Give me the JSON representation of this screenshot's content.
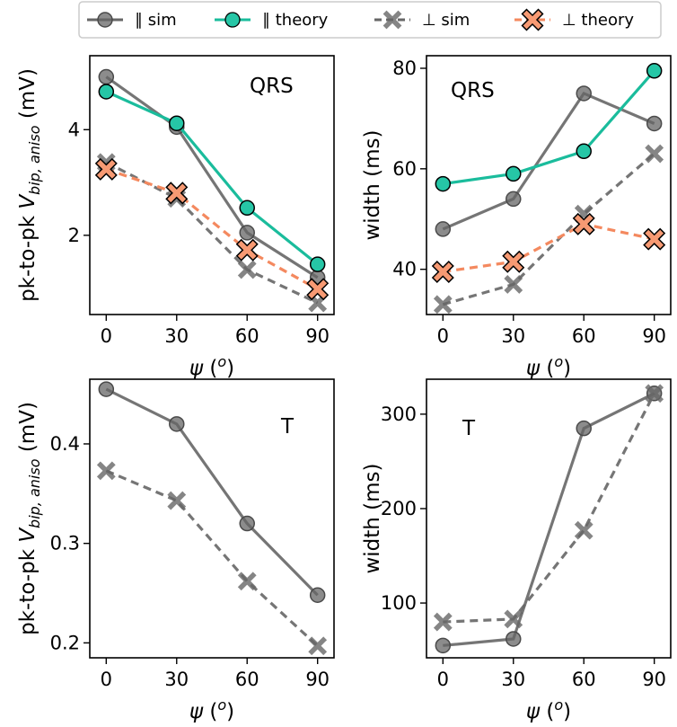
{
  "legend": {
    "entries": [
      {
        "label": "∥ sim",
        "color": "#666666",
        "marker": "circle",
        "dash": false
      },
      {
        "label": "∥ theory",
        "color": "#1abc9c",
        "marker": "circle",
        "dash": false
      },
      {
        "label": "⊥ sim",
        "color": "#666666",
        "marker": "x",
        "dash": true
      },
      {
        "label": "⊥ theory",
        "color": "#f4895f",
        "marker": "x",
        "dash": true
      }
    ]
  },
  "colors": {
    "sim": "#666666",
    "theory_par": "#1abc9c",
    "theory_perp": "#f4895f",
    "theory_par_face": "#26c6a6",
    "theory_perp_face": "#f79a73"
  },
  "chart_data": [
    {
      "type": "line",
      "panel": "top-left",
      "annotation": "QRS",
      "xlabel": "ψ (o)",
      "ylabel": "pk-to-pk V_bip,aniso (mV)",
      "x": [
        0,
        30,
        60,
        90
      ],
      "xlim": [
        -7,
        97
      ],
      "ylim": [
        0.5,
        5.4
      ],
      "xticks": [
        0,
        30,
        60,
        90
      ],
      "yticks": [
        2,
        4
      ],
      "series": [
        {
          "name": "∥ sim",
          "values": [
            5.0,
            4.05,
            2.05,
            1.2
          ]
        },
        {
          "name": "∥ theory",
          "values": [
            4.72,
            4.12,
            2.52,
            1.45
          ]
        },
        {
          "name": "⊥ sim",
          "values": [
            3.38,
            2.7,
            1.35,
            0.72
          ]
        },
        {
          "name": "⊥ theory",
          "values": [
            3.25,
            2.8,
            1.72,
            0.98
          ]
        }
      ]
    },
    {
      "type": "line",
      "panel": "top-right",
      "annotation": "QRS",
      "xlabel": "ψ (o)",
      "ylabel": "width (ms)",
      "x": [
        0,
        30,
        60,
        90
      ],
      "xlim": [
        -7,
        97
      ],
      "ylim": [
        31,
        82.5
      ],
      "xticks": [
        0,
        30,
        60,
        90
      ],
      "yticks": [
        40,
        60,
        80
      ],
      "series": [
        {
          "name": "∥ sim",
          "values": [
            48,
            54,
            75,
            69
          ]
        },
        {
          "name": "∥ theory",
          "values": [
            57,
            59,
            63.5,
            79.5
          ]
        },
        {
          "name": "⊥ sim",
          "values": [
            33,
            37,
            51,
            63
          ]
        },
        {
          "name": "⊥ theory",
          "values": [
            39.5,
            41.5,
            49,
            46
          ]
        }
      ]
    },
    {
      "type": "line",
      "panel": "bottom-left",
      "annotation": "T",
      "xlabel": "ψ (o)",
      "ylabel": "pk-to-pk V_bip,aniso (mV)",
      "x": [
        0,
        30,
        60,
        90
      ],
      "xlim": [
        -7,
        97
      ],
      "ylim": [
        0.185,
        0.465
      ],
      "xticks": [
        0,
        30,
        60,
        90
      ],
      "yticks": [
        0.2,
        0.3,
        0.4
      ],
      "series": [
        {
          "name": "∥ sim",
          "values": [
            0.455,
            0.42,
            0.32,
            0.248
          ]
        },
        {
          "name": "⊥ sim",
          "values": [
            0.373,
            0.343,
            0.262,
            0.197
          ]
        }
      ]
    },
    {
      "type": "line",
      "panel": "bottom-right",
      "annotation": "T",
      "xlabel": "ψ (o)",
      "ylabel": "width (ms)",
      "x": [
        0,
        30,
        60,
        90
      ],
      "xlim": [
        -7,
        97
      ],
      "ylim": [
        42,
        337
      ],
      "xticks": [
        0,
        30,
        60,
        90
      ],
      "yticks": [
        100,
        200,
        300
      ],
      "series": [
        {
          "name": "∥ sim",
          "values": [
            55,
            62,
            285,
            322
          ]
        },
        {
          "name": "⊥ sim",
          "values": [
            80,
            83,
            177,
            322
          ]
        }
      ]
    }
  ],
  "axis_text": {
    "xlabel_main": "ψ",
    "xlabel_paren_open": " (",
    "xlabel_sup": "o",
    "xlabel_paren_close": ")",
    "ylabel_v_prefix": "pk-to-pk ",
    "ylabel_v_main": "V",
    "ylabel_v_sub": "bip, aniso",
    "ylabel_v_suffix": " (mV)",
    "ylabel_width": "width (ms)"
  }
}
